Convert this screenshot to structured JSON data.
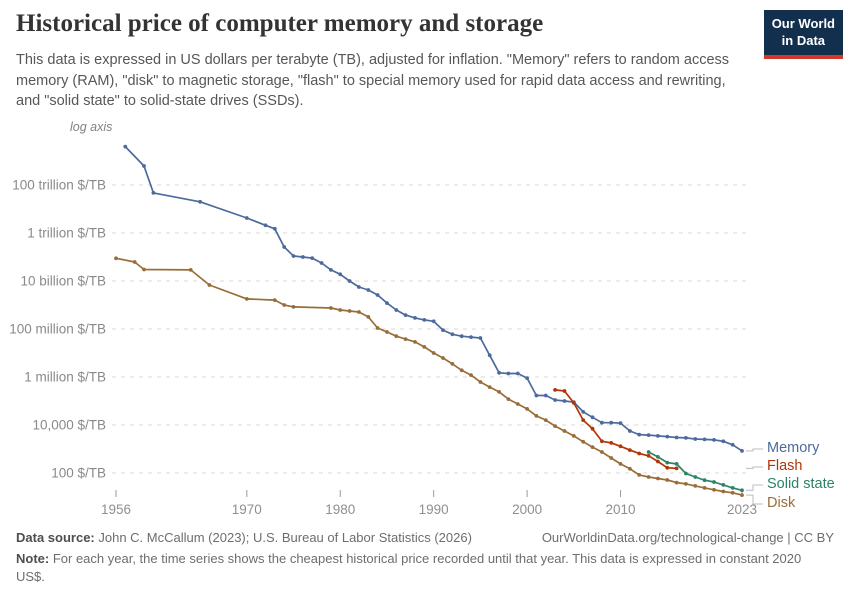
{
  "header": {
    "title": "Historical price of computer memory and storage",
    "subtitle": "This data is expressed in US dollars per terabyte (TB), adjusted for inflation. \"Memory\" refers to random access memory (RAM), \"disk\" to magnetic storage, \"flash\" to special memory used for rapid data access and rewriting, and \"solid state\" to solid-state drives (SSDs).",
    "logo_line1": "Our World",
    "logo_line2": "in Data",
    "logo_bg_color": "#12304E",
    "logo_bar_color": "#CE3C29"
  },
  "chart_data": {
    "type": "line",
    "title": "Historical price of computer memory and storage",
    "log_axis_label": "log axis",
    "ylabel": "$/TB",
    "y_scale": "log",
    "grid": "dashed horizontal",
    "legend_position": "right of line ends",
    "x_ticks": [
      1956,
      1970,
      1980,
      1990,
      2000,
      2010,
      2023
    ],
    "y_ticks": [
      {
        "label": "100 trillion $/TB",
        "value": 100000000000000.0
      },
      {
        "label": "1 trillion $/TB",
        "value": 1000000000000.0
      },
      {
        "label": "10 billion $/TB",
        "value": 10000000000.0
      },
      {
        "label": "100 million $/TB",
        "value": 100000000.0
      },
      {
        "label": "1 million $/TB",
        "value": 1000000.0
      },
      {
        "label": "10,000 $/TB",
        "value": 10000.0
      },
      {
        "label": "100 $/TB",
        "value": 100.0
      }
    ],
    "series": [
      {
        "name": "Memory",
        "color": "#4C6A9C",
        "points": [
          [
            1957,
            4000000000000000.0
          ],
          [
            1959,
            620000000000000.0
          ],
          [
            1960,
            47000000000000.0
          ],
          [
            1965,
            20000000000000.0
          ],
          [
            1970,
            4200000000000.0
          ],
          [
            1972,
            2100000000000.0
          ],
          [
            1973,
            1500000000000.0
          ],
          [
            1974,
            260000000000.0
          ],
          [
            1975,
            110000000000.0
          ],
          [
            1976,
            100000000000.0
          ],
          [
            1977,
            90000000000.0
          ],
          [
            1978,
            56000000000.0
          ],
          [
            1979,
            29000000000.0
          ],
          [
            1980,
            19000000000.0
          ],
          [
            1981,
            10000000000.0
          ],
          [
            1982,
            5600000000.0
          ],
          [
            1983,
            4200000000.0
          ],
          [
            1984,
            2600000000.0
          ],
          [
            1985,
            1200000000.0
          ],
          [
            1986,
            620000000.0
          ],
          [
            1987,
            380000000.0
          ],
          [
            1988,
            290000000.0
          ],
          [
            1989,
            240000000.0
          ],
          [
            1990,
            210000000.0
          ],
          [
            1991,
            90000000.0
          ],
          [
            1992,
            60000000.0
          ],
          [
            1993,
            50000000.0
          ],
          [
            1994,
            46000000.0
          ],
          [
            1995,
            42000000.0
          ],
          [
            1996,
            8000000.0
          ],
          [
            1997,
            1500000.0
          ],
          [
            1998,
            1400000.0
          ],
          [
            1999,
            1400000.0
          ],
          [
            2000,
            900000.0
          ],
          [
            2001,
            170000.0
          ],
          [
            2002,
            170000.0
          ],
          [
            2003,
            110000.0
          ],
          [
            2004,
            100000.0
          ],
          [
            2005,
            90000.0
          ],
          [
            2006,
            35000.0
          ],
          [
            2007,
            21000.0
          ],
          [
            2008,
            12500.0
          ],
          [
            2009,
            12500.0
          ],
          [
            2010,
            12000.0
          ],
          [
            2011,
            5600
          ],
          [
            2012,
            4000
          ],
          [
            2013,
            3800
          ],
          [
            2014,
            3500
          ],
          [
            2015,
            3300
          ],
          [
            2016,
            3000
          ],
          [
            2017,
            2900
          ],
          [
            2018,
            2600
          ],
          [
            2019,
            2500
          ],
          [
            2020,
            2400
          ],
          [
            2021,
            2100
          ],
          [
            2022,
            1500
          ],
          [
            2023,
            830
          ]
        ]
      },
      {
        "name": "Flash",
        "color": "#B13507",
        "points": [
          [
            2003,
            290000.0
          ],
          [
            2004,
            260000.0
          ],
          [
            2005,
            83000.0
          ],
          [
            2006,
            16000.0
          ],
          [
            2007,
            7000
          ],
          [
            2008,
            2100
          ],
          [
            2009,
            1800
          ],
          [
            2010,
            1300
          ],
          [
            2011,
            900
          ],
          [
            2012,
            650
          ],
          [
            2013,
            520
          ],
          [
            2014,
            300
          ],
          [
            2015,
            165
          ],
          [
            2016,
            155
          ]
        ]
      },
      {
        "name": "Solid state",
        "color": "#2C8465",
        "points": [
          [
            2013,
            750
          ],
          [
            2014,
            470
          ],
          [
            2015,
            270
          ],
          [
            2016,
            240
          ],
          [
            2017,
            95
          ],
          [
            2018,
            68
          ],
          [
            2019,
            50
          ],
          [
            2020,
            42
          ],
          [
            2021,
            32
          ],
          [
            2022,
            24
          ],
          [
            2023,
            19
          ]
        ]
      },
      {
        "name": "Disk",
        "color": "#996D39",
        "points": [
          [
            1956,
            88000000000.0
          ],
          [
            1958,
            62000000000.0
          ],
          [
            1959,
            30000000000.0
          ],
          [
            1964,
            29000000000.0
          ],
          [
            1966,
            6800000000.0
          ],
          [
            1970,
            1800000000.0
          ],
          [
            1973,
            1600000000.0
          ],
          [
            1974,
            1000000000.0
          ],
          [
            1975,
            830000000.0
          ],
          [
            1979,
            750000000.0
          ],
          [
            1980,
            620000000.0
          ],
          [
            1981,
            560000000.0
          ],
          [
            1982,
            510000000.0
          ],
          [
            1983,
            320000000.0
          ],
          [
            1984,
            110000000.0
          ],
          [
            1985,
            75000000.0
          ],
          [
            1986,
            50000000.0
          ],
          [
            1987,
            38000000.0
          ],
          [
            1988,
            29000000.0
          ],
          [
            1989,
            18000000.0
          ],
          [
            1990,
            10000000.0
          ],
          [
            1991,
            6200000.0
          ],
          [
            1992,
            3500000.0
          ],
          [
            1993,
            1900000.0
          ],
          [
            1994,
            1200000.0
          ],
          [
            1995,
            620000.0
          ],
          [
            1996,
            380000.0
          ],
          [
            1997,
            240000.0
          ],
          [
            1998,
            120000.0
          ],
          [
            1999,
            75000.0
          ],
          [
            2000,
            47000.0
          ],
          [
            2001,
            24000.0
          ],
          [
            2002,
            16000.0
          ],
          [
            2003,
            9000
          ],
          [
            2004,
            5600
          ],
          [
            2005,
            3500
          ],
          [
            2006,
            2000
          ],
          [
            2007,
            1200
          ],
          [
            2008,
            750
          ],
          [
            2009,
            420
          ],
          [
            2010,
            240
          ],
          [
            2011,
            150
          ],
          [
            2012,
            83
          ],
          [
            2013,
            68
          ],
          [
            2014,
            59
          ],
          [
            2015,
            51
          ],
          [
            2016,
            40
          ],
          [
            2017,
            35
          ],
          [
            2018,
            29
          ],
          [
            2019,
            24
          ],
          [
            2020,
            20
          ],
          [
            2021,
            17
          ],
          [
            2022,
            15
          ],
          [
            2023,
            12
          ]
        ]
      }
    ]
  },
  "footer": {
    "datasource_label": "Data source:",
    "datasource_text": " John C. McCallum (2023); U.S. Bureau of Labor Statistics (2026)",
    "url": "OurWorldinData.org/technological-change",
    "license": " | CC BY",
    "note_label": "Note:",
    "note_text": " For each year, the time series shows the cheapest historical price recorded until that year. This data is expressed in constant 2020 US$."
  }
}
